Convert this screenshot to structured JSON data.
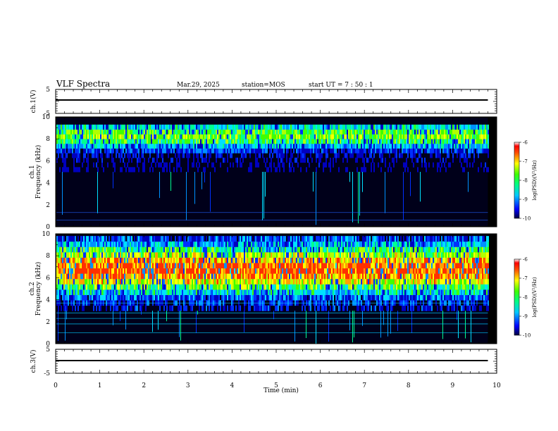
{
  "header": {
    "title": "VLF Spectra",
    "date": "Mar.29, 2025",
    "station": "station=MOS",
    "start_ut": "start  UT =   7 : 50 : 1"
  },
  "chart_data": {
    "type": "heatmap",
    "x_range": [
      0,
      10
    ],
    "x_ticks": [
      "0",
      "1",
      "2",
      "3",
      "4",
      "5",
      "6",
      "7",
      "8",
      "9",
      "10"
    ],
    "x_data_end": 9.8,
    "xlabel": "Time  (min)",
    "panels": [
      {
        "type": "line",
        "ylabel": "ch.1(V)",
        "ylim": [
          -5,
          5
        ],
        "yticks": [
          "5",
          "-5"
        ],
        "level": 0
      },
      {
        "type": "heatmap",
        "ylabel_1": "ch.1",
        "ylabel_2": "Frequency (kHz)",
        "ylim": [
          0,
          10
        ],
        "yticks": [
          "0",
          "2",
          "4",
          "6",
          "8",
          "10"
        ],
        "emission_band_khz": [
          5.0,
          9.3
        ],
        "intensity": "moderate",
        "colorbar": {
          "label": "log(PSD)(V²/Hz)",
          "range": [
            -10,
            -6
          ],
          "ticks": [
            "-6",
            "-7",
            "-8",
            "-9",
            "-10"
          ]
        }
      },
      {
        "type": "heatmap",
        "ylabel_1": "ch.2",
        "ylabel_2": "Frequency (kHz)",
        "ylim": [
          0,
          10
        ],
        "yticks": [
          "0",
          "2",
          "4",
          "6",
          "8",
          "10"
        ],
        "emission_band_khz": [
          3.0,
          9.8
        ],
        "intensity": "strong",
        "colorbar": {
          "label": "log(PSD)(V²/Hz)",
          "range": [
            -10,
            -6
          ],
          "ticks": [
            "-6",
            "-7",
            "-8",
            "-9",
            "-10"
          ]
        }
      },
      {
        "type": "line",
        "ylabel": "ch.3(V)",
        "ylim": [
          -5,
          5
        ],
        "yticks": [
          "5",
          "-5"
        ],
        "level": 0
      }
    ]
  }
}
